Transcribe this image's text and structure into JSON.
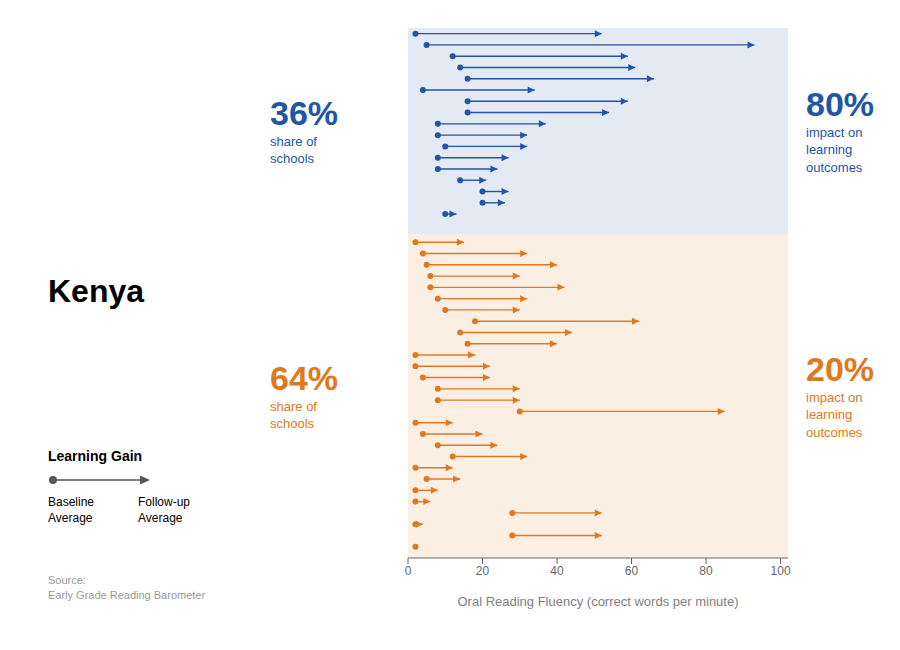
{
  "chart_data": {
    "type": "dumbbell",
    "title": "Kenya",
    "x_label": "Oral Reading Fluency (correct words per minute)",
    "xlim": [
      0,
      102
    ],
    "xticks": [
      0,
      20,
      40,
      60,
      80,
      100
    ],
    "tick_labels": "x",
    "grid": false,
    "series": [
      {
        "color": "#2255a4",
        "annotations": [
          "36%",
          "share of\nschools",
          "80%",
          "impact on\nlearning\noutcomes"
        ],
        "values": [
          [
            2,
            52
          ],
          [
            5,
            93
          ],
          [
            12,
            59
          ],
          [
            14,
            61
          ],
          [
            16,
            66
          ],
          [
            4,
            34
          ],
          [
            16,
            59
          ],
          [
            16,
            54
          ],
          [
            8,
            37
          ],
          [
            8,
            32
          ],
          [
            10,
            32
          ],
          [
            8,
            27
          ],
          [
            8,
            24
          ],
          [
            14,
            21
          ],
          [
            20,
            27
          ],
          [
            20,
            26
          ],
          [
            10,
            13
          ]
        ]
      },
      {
        "color": "#e07820",
        "annotations": [
          "64%",
          "share of\nschools",
          "20%",
          "impact on\nlearning\noutcomes"
        ],
        "values": [
          [
            2,
            15
          ],
          [
            4,
            32
          ],
          [
            5,
            40
          ],
          [
            6,
            30
          ],
          [
            6,
            42
          ],
          [
            8,
            32
          ],
          [
            10,
            30
          ],
          [
            18,
            62
          ],
          [
            14,
            44
          ],
          [
            16,
            40
          ],
          [
            2,
            18
          ],
          [
            2,
            22
          ],
          [
            4,
            22
          ],
          [
            8,
            30
          ],
          [
            8,
            30
          ],
          [
            30,
            85
          ],
          [
            2,
            12
          ],
          [
            4,
            20
          ],
          [
            8,
            24
          ],
          [
            12,
            32
          ],
          [
            2,
            12
          ],
          [
            5,
            14
          ],
          [
            2,
            8
          ],
          [
            2,
            6
          ],
          [
            28,
            52
          ],
          [
            2,
            4
          ],
          [
            28,
            52
          ],
          [
            2,
            2
          ]
        ]
      }
    ],
    "legend_title": "Learning Gain",
    "legend_labels": [
      "Baseline\nAverage",
      "Follow-up\nAverage"
    ],
    "source": "Source:\nEarly Grade Reading Barometer"
  }
}
